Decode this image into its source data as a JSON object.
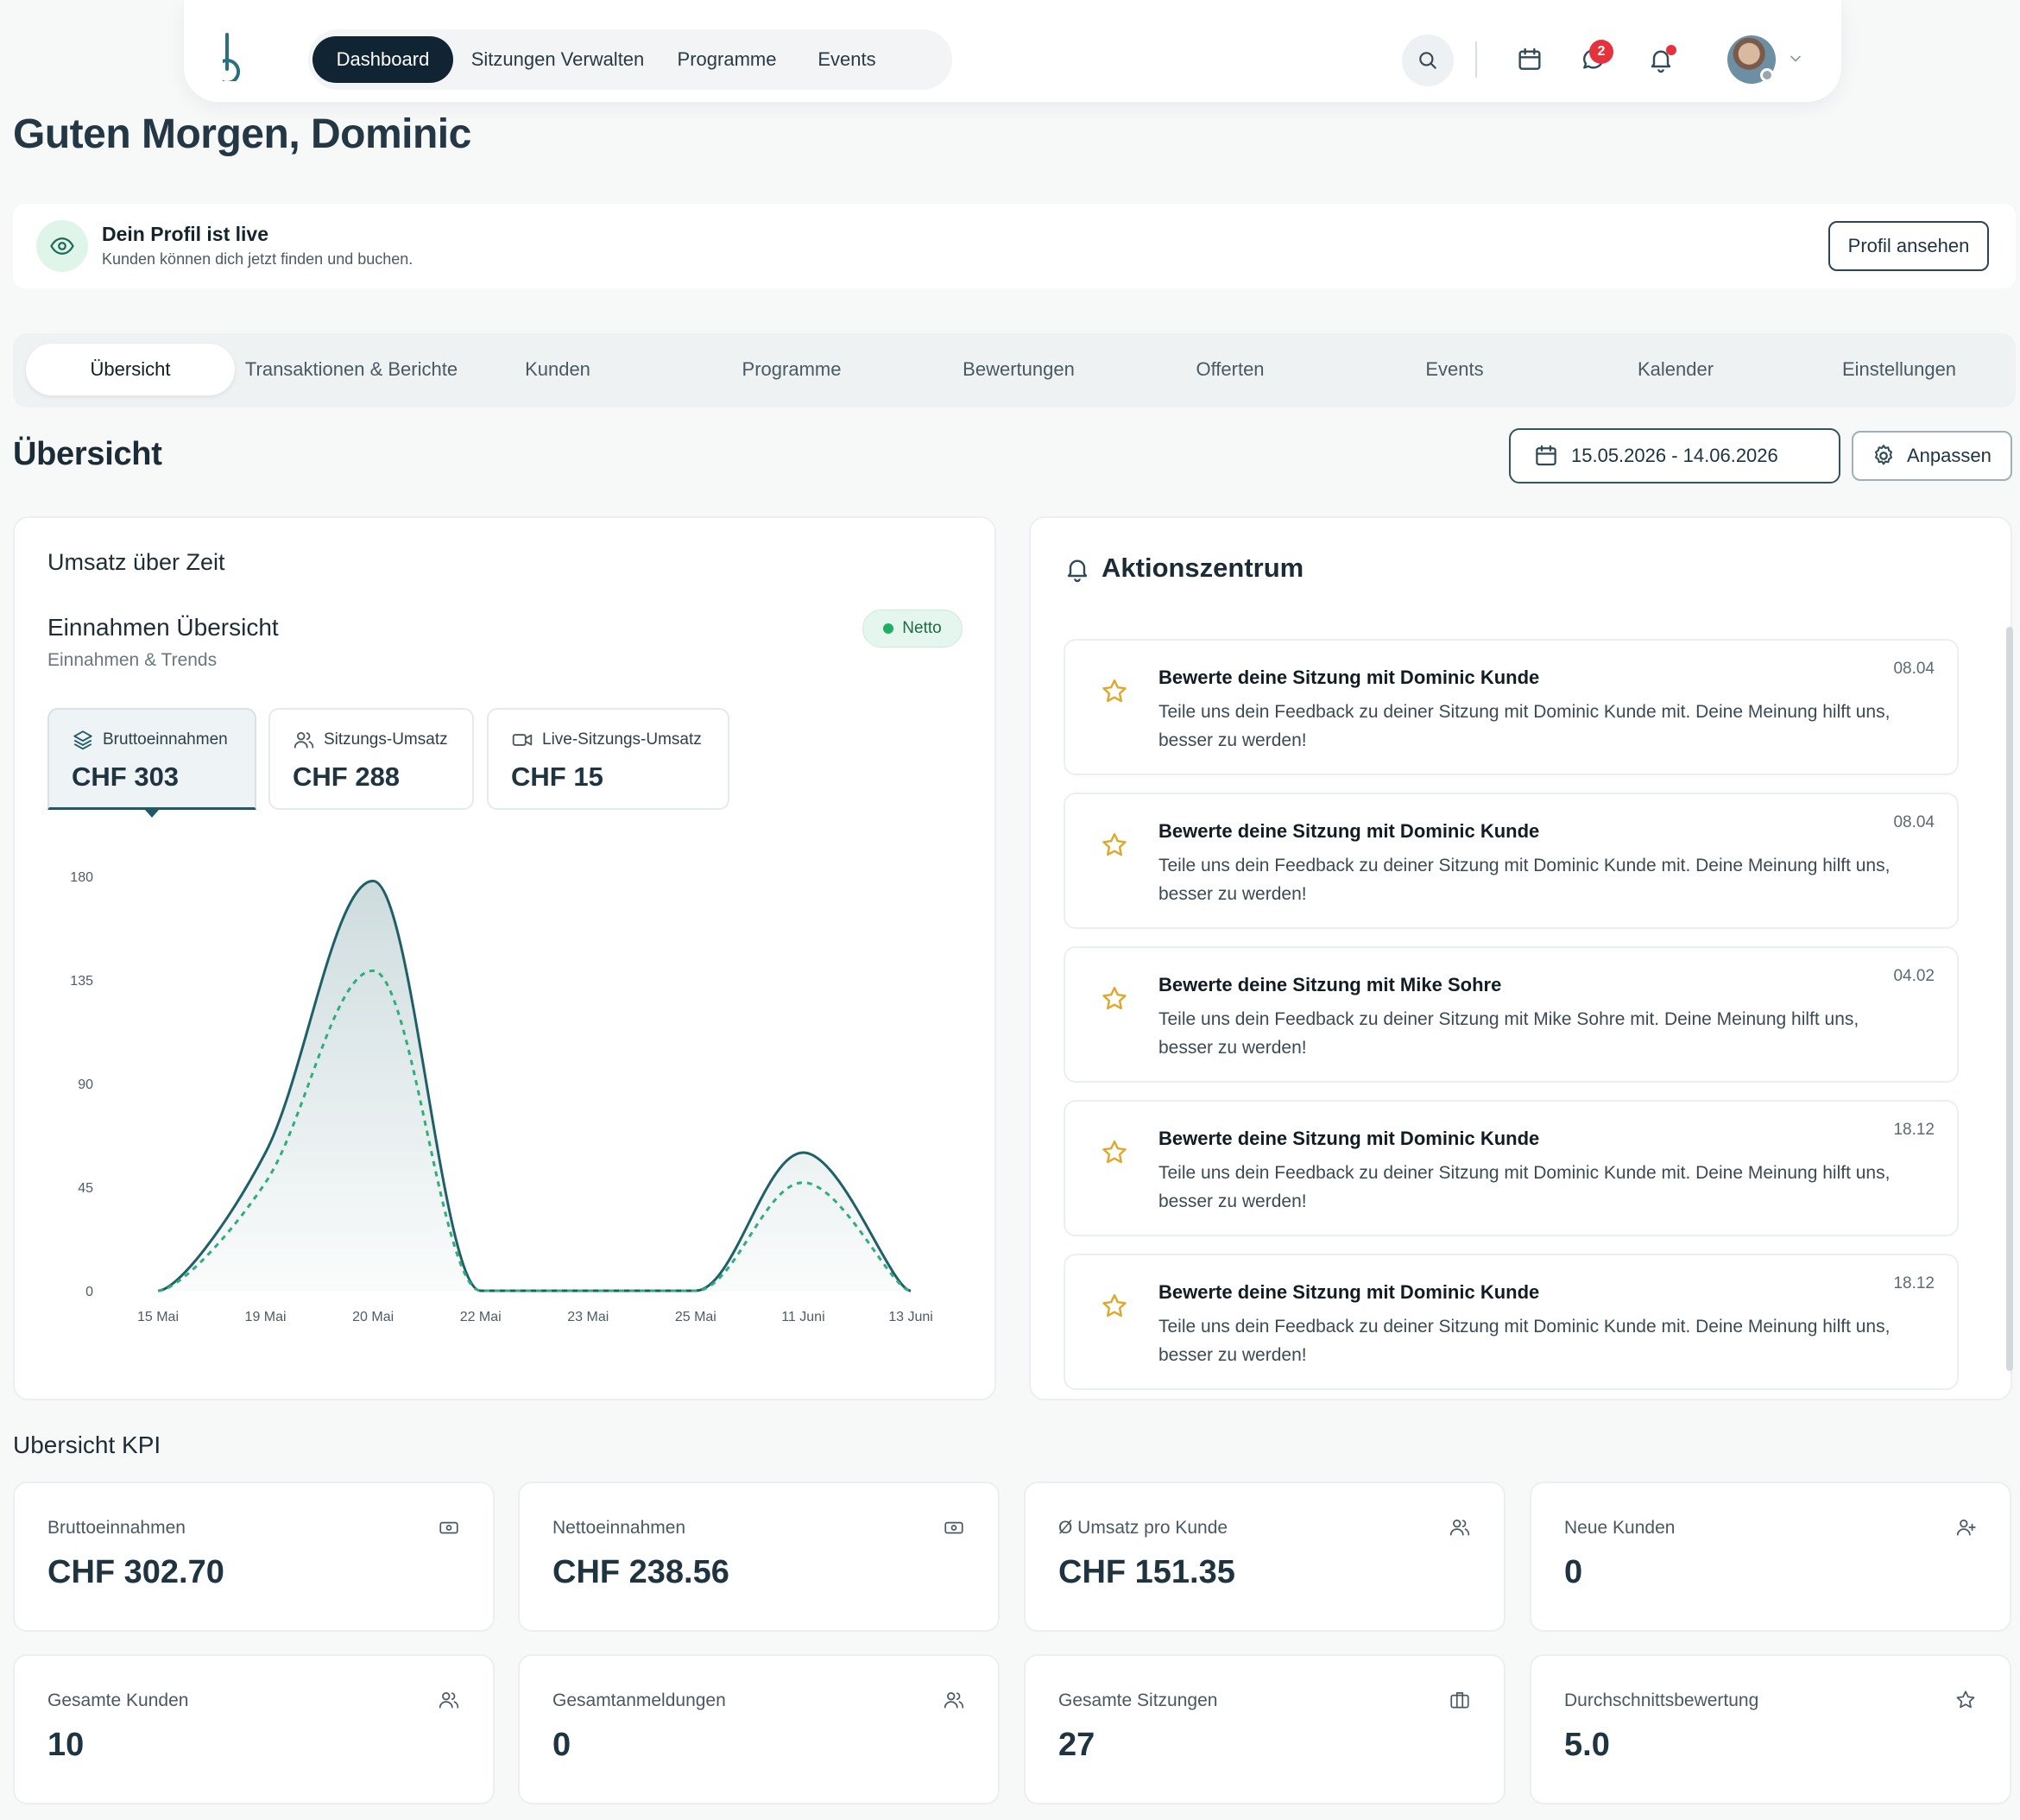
{
  "nav": {
    "items": [
      "Dashboard",
      "Sitzungen Verwalten",
      "Programme",
      "Events"
    ],
    "active": "Dashboard",
    "chat_badge": "2"
  },
  "greeting": "Guten Morgen, Dominic",
  "profile_banner": {
    "title": "Dein Profil ist live",
    "subtitle": "Kunden können dich jetzt finden und buchen.",
    "button": "Profil ansehen"
  },
  "tabs": [
    "Übersicht",
    "Transaktionen & Berichte",
    "Kunden",
    "Programme",
    "Bewertungen",
    "Offerten",
    "Events",
    "Kalender",
    "Einstellungen"
  ],
  "active_tab": "Übersicht",
  "section_title": "Übersicht",
  "date_range": "15.05.2026 - 14.06.2026",
  "adjust_button": "Anpassen",
  "revenue_card": {
    "title": "Umsatz über Zeit",
    "subtitle_title": "Einnahmen Übersicht",
    "subtitle": "Einnahmen & Trends",
    "badge": "Netto",
    "metrics": [
      {
        "label": "Bruttoeinnahmen",
        "value": "CHF 303",
        "icon": "layers-icon",
        "active": true
      },
      {
        "label": "Sitzungs-Umsatz",
        "value": "CHF 288",
        "icon": "users-icon",
        "active": false
      },
      {
        "label": "Live-Sitzungs-Umsatz",
        "value": "CHF 15",
        "icon": "video-icon",
        "active": false
      }
    ]
  },
  "chart_data": {
    "type": "area",
    "x": [
      "15 Mai",
      "19 Mai",
      "20 Mai",
      "22 Mai",
      "23 Mai",
      "25 Mai",
      "11 Juni",
      "13 Juni"
    ],
    "series": [
      {
        "values": [
          0,
          60,
          178,
          0,
          0,
          0,
          60,
          0
        ],
        "style": "solid-area",
        "color": "#1f5f68"
      },
      {
        "values": [
          0,
          47,
          139,
          0,
          0,
          0,
          47,
          0
        ],
        "style": "dashed",
        "color": "#2fae7a"
      }
    ],
    "yticks": [
      0,
      45,
      90,
      135,
      180
    ],
    "ylim": [
      0,
      180
    ],
    "grid": false
  },
  "action_center": {
    "title": "Aktionszentrum",
    "items": [
      {
        "title": "Bewerte deine Sitzung mit Dominic Kunde",
        "body": "Teile uns dein Feedback zu deiner Sitzung mit Dominic Kunde mit. Deine Meinung hilft uns, besser zu werden!",
        "date": "08.04"
      },
      {
        "title": "Bewerte deine Sitzung mit Dominic Kunde",
        "body": "Teile uns dein Feedback zu deiner Sitzung mit Dominic Kunde mit. Deine Meinung hilft uns, besser zu werden!",
        "date": "08.04"
      },
      {
        "title": "Bewerte deine Sitzung mit Mike Sohre",
        "body": "Teile uns dein Feedback zu deiner Sitzung mit Mike Sohre mit. Deine Meinung hilft uns, besser zu werden!",
        "date": "04.02"
      },
      {
        "title": "Bewerte deine Sitzung mit Dominic Kunde",
        "body": "Teile uns dein Feedback zu deiner Sitzung mit Dominic Kunde mit. Deine Meinung hilft uns, besser zu werden!",
        "date": "18.12"
      },
      {
        "title": "Bewerte deine Sitzung mit Dominic Kunde",
        "body": "Teile uns dein Feedback zu deiner Sitzung mit Dominic Kunde mit. Deine Meinung hilft uns, besser zu werden!",
        "date": "18.12"
      }
    ]
  },
  "kpi": {
    "heading": "Ubersicht KPI",
    "cards": [
      {
        "label": "Bruttoeinnahmen",
        "value": "CHF 302.70",
        "icon": "cash-icon"
      },
      {
        "label": "Nettoeinnahmen",
        "value": "CHF 238.56",
        "icon": "cash-icon"
      },
      {
        "label": "Ø Umsatz pro Kunde",
        "value": "CHF 151.35",
        "icon": "users-icon"
      },
      {
        "label": "Neue Kunden",
        "value": "0",
        "icon": "user-plus-icon"
      },
      {
        "label": "Gesamte Kunden",
        "value": "10",
        "icon": "users-icon"
      },
      {
        "label": "Gesamtanmeldungen",
        "value": "0",
        "icon": "users-icon"
      },
      {
        "label": "Gesamte Sitzungen",
        "value": "27",
        "icon": "briefcase-icon"
      },
      {
        "label": "Durchschnittsbewertung",
        "value": "5.0",
        "icon": "star-icon"
      }
    ]
  }
}
